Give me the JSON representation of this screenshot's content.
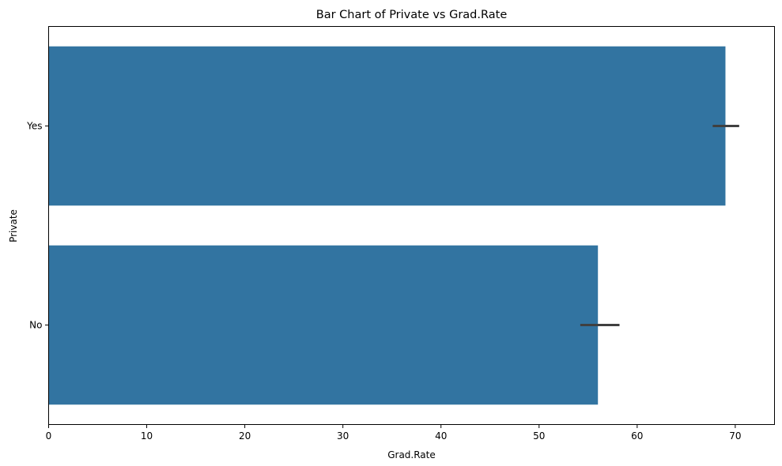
{
  "chart_data": {
    "type": "bar",
    "orientation": "horizontal",
    "title": "Bar Chart of Private vs Grad.Rate",
    "xlabel": "Grad.Rate",
    "ylabel": "Private",
    "categories": [
      "Yes",
      "No"
    ],
    "values": [
      69.0,
      56.0
    ],
    "error_bars": [
      {
        "low": 67.7,
        "high": 70.4
      },
      {
        "low": 54.2,
        "high": 58.2
      }
    ],
    "xlim": [
      0,
      74
    ],
    "xticks": [
      0,
      10,
      20,
      30,
      40,
      50,
      60,
      70
    ],
    "bar_color": "#3274a1",
    "error_color": "#404040",
    "grid": false,
    "legend": "none"
  }
}
